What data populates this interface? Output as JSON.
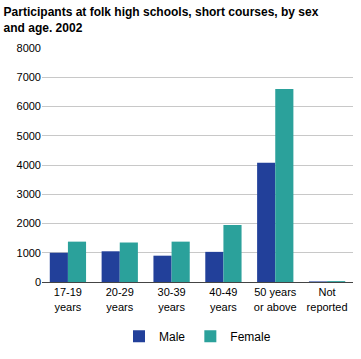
{
  "chart_data": {
    "type": "bar",
    "title": "Participants at folk high schools, short courses, by sex\nand age. 2002",
    "categories": [
      "17-19\nyears",
      "20-29\nyears",
      "30-39\nyears",
      "40-49\nyears",
      "50 years\nor above",
      "Not\nreported"
    ],
    "series": [
      {
        "name": "Male",
        "color": "#22409a",
        "values": [
          1000,
          1050,
          900,
          1030,
          4080,
          20
        ]
      },
      {
        "name": "Female",
        "color": "#2ba19b",
        "values": [
          1380,
          1350,
          1380,
          1950,
          6600,
          30
        ]
      }
    ],
    "ylim": [
      0,
      8000
    ],
    "yticks": [
      0,
      1000,
      2000,
      3000,
      4000,
      5000,
      6000,
      7000,
      8000
    ],
    "grid": true,
    "legend": "bottom"
  }
}
